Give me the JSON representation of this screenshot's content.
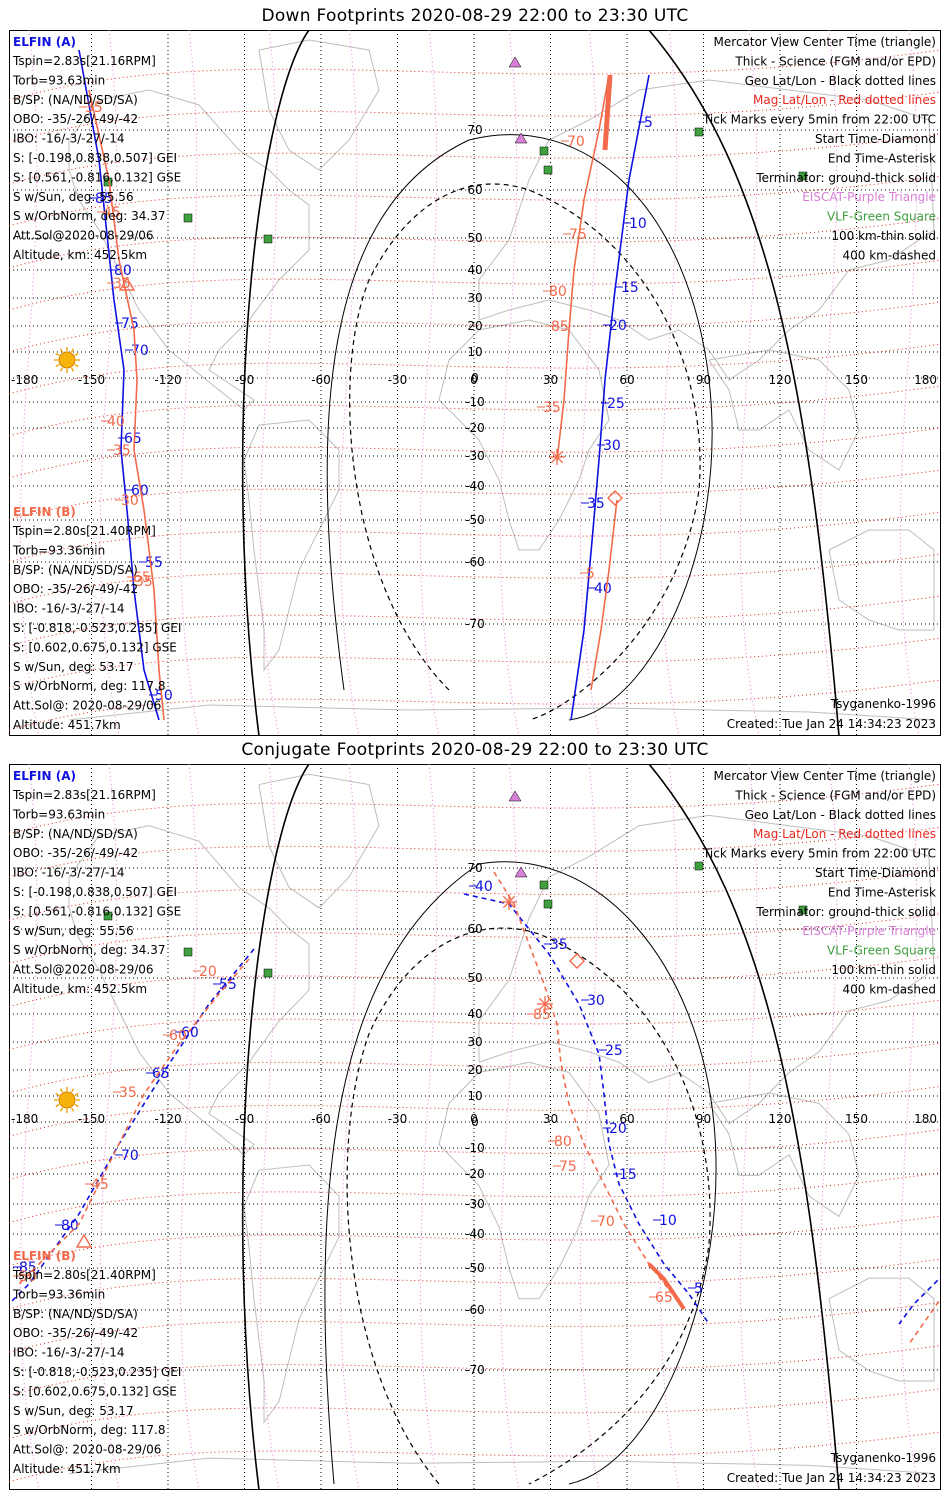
{
  "panels": [
    {
      "id": "down",
      "title": "Down Footprints 2020-08-29 22:00 to 23:30 UTC"
    },
    {
      "id": "conjugate",
      "title": "Conjugate Footprints 2020-08-29 22:00 to 23:30 UTC"
    }
  ],
  "info_a": {
    "header": "ELFIN (A)",
    "lines": [
      "Tspin=2.83s[21.16RPM]",
      "Torb=93.63min",
      "B/SP: (NA/ND/SD/SA)",
      "OBO: -35/-26/-49/-42",
      "IBO: -16/-3/-27/-14",
      "S: [-0.198,0.838,0.507] GEI",
      "S: [0.561,-0.816,0.132] GSE",
      "S w/Sun, deg: 55.56",
      "S w/OrbNorm, deg: 34.37",
      "Att.Sol@2020-08-29/06",
      "Altitude, km: 452.5km"
    ]
  },
  "info_b": {
    "header": "ELFIN (B)",
    "lines": [
      "Tspin=2.80s[21.40RPM]",
      "Torb=93.36min",
      "B/SP: (NA/ND/SD/SA)",
      "OBO: -35/-26/-49/-42",
      "IBO: -16/-3/-27/-14",
      "S: [-0.818,-0.523,0.235] GEI",
      "S: [0.602,0.675,0.132] GSE",
      "S w/Sun, deg: 53.17",
      "S w/OrbNorm, deg: 117.8",
      "Att.Sol@: 2020-08-29/06",
      "Altitude: 451.7km"
    ]
  },
  "legend": [
    {
      "text": "Mercator View Center Time (triangle)",
      "color": "#000000"
    },
    {
      "text": "Thick - Science (FGM and/or EPD)",
      "color": "#000000"
    },
    {
      "text": "Geo Lat/Lon - Black dotted lines",
      "color": "#000000"
    },
    {
      "text": "Mag Lat/Lon - Red dotted lines",
      "color": "#e8281e"
    },
    {
      "text": "Tick Marks every 5min from 22:00 UTC",
      "color": "#000000"
    },
    {
      "text": "Start Time-Diamond",
      "color": "#000000"
    },
    {
      "text": "End Time-Asterisk",
      "color": "#000000"
    },
    {
      "text": "Terminator: ground-thick solid",
      "color": "#000000"
    },
    {
      "text": "EISCAT-Purple Triangle",
      "color": "#d77fd7"
    },
    {
      "text": "VLF-Green Square",
      "color": "#3fa03f"
    },
    {
      "text": "100 km-thin solid",
      "color": "#000000"
    },
    {
      "text": "400 km-dashed",
      "color": "#000000"
    }
  ],
  "model": "Tsyganenko-1996",
  "created": "Created: Tue Jan 24 14:34:23 2023",
  "axes": {
    "lon_ticks": [
      "-180",
      "-150",
      "-120",
      "-90",
      "-60",
      "-30",
      "0",
      "30",
      "60",
      "90",
      "120",
      "150",
      "180"
    ],
    "lat_ticks": [
      "70",
      "60",
      "50",
      "40",
      "30",
      "20",
      "10",
      "0",
      "-10",
      "-20",
      "-30",
      "-40",
      "-50",
      "-60",
      "-70"
    ]
  },
  "colors": {
    "elfin_a": "#1010e0",
    "elfin_b": "#f26a4a",
    "mag_grid": "#e8281e",
    "geo_grid": "#000000",
    "eiscat": "#d77fd7",
    "vlf": "#3fa03f",
    "land": "#bdbdbd"
  },
  "track_labels": {
    "down": {
      "a": [
        "85",
        "80",
        "75",
        "70",
        "65",
        "60",
        "55",
        "50",
        "5",
        "10",
        "15",
        "20",
        "25",
        "30",
        "35",
        "40"
      ],
      "b": [
        "35",
        "45",
        "35",
        "40",
        "35",
        "30",
        "35",
        "65",
        "70",
        "75",
        "80",
        "85",
        "35",
        "5"
      ]
    },
    "conjugate": {
      "a": [
        "40",
        "35",
        "30",
        "25",
        "20",
        "15",
        "10",
        "5",
        "55",
        "60",
        "65",
        "70",
        "80",
        "85"
      ],
      "b": [
        "85",
        "80",
        "75",
        "70",
        "65",
        "20",
        "60",
        "35",
        "45",
        "50"
      ]
    }
  }
}
